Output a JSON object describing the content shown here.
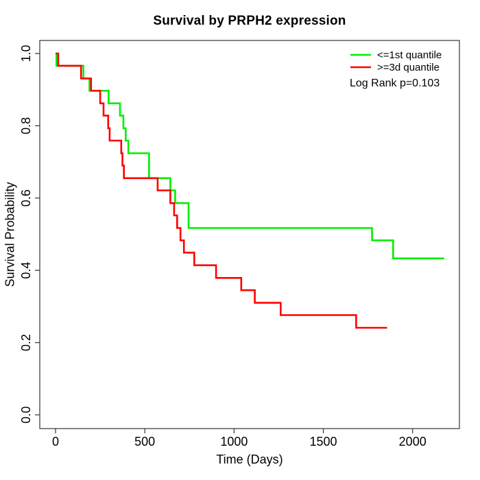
{
  "chart_data": {
    "type": "line",
    "subtype": "kaplan-meier-step",
    "title": "Survival by PRPH2 expression",
    "xlabel": "Time (Days)",
    "ylabel": "Survival Probability",
    "xlim": [
      0,
      2260
    ],
    "ylim": [
      0,
      1
    ],
    "x_ticks": [
      0,
      500,
      1000,
      1500,
      2000
    ],
    "y_ticks": [
      "0.0",
      "0.2",
      "0.4",
      "0.6",
      "0.8",
      "1.0"
    ],
    "grid": false,
    "legend_position": "top-right",
    "annotation": "Log Rank p=0.103",
    "axis_color": "#333333",
    "series": [
      {
        "name": "<=1st quantile",
        "color": "#00ee00",
        "points": [
          [
            0,
            1.0
          ],
          [
            5,
            0.966
          ],
          [
            156,
            0.931
          ],
          [
            190,
            0.897
          ],
          [
            297,
            0.862
          ],
          [
            361,
            0.828
          ],
          [
            380,
            0.793
          ],
          [
            393,
            0.759
          ],
          [
            408,
            0.724
          ],
          [
            524,
            0.655
          ],
          [
            643,
            0.621
          ],
          [
            670,
            0.586
          ],
          [
            745,
            0.517
          ],
          [
            1773,
            0.483
          ],
          [
            1891,
            0.433
          ]
        ],
        "end_time": 2177
      },
      {
        "name": ">=3d quantile",
        "color": "#ff0000",
        "points": [
          [
            0,
            1.0
          ],
          [
            15,
            0.966
          ],
          [
            143,
            0.931
          ],
          [
            199,
            0.897
          ],
          [
            250,
            0.862
          ],
          [
            269,
            0.828
          ],
          [
            295,
            0.793
          ],
          [
            303,
            0.759
          ],
          [
            368,
            0.724
          ],
          [
            375,
            0.69
          ],
          [
            383,
            0.655
          ],
          [
            572,
            0.621
          ],
          [
            643,
            0.586
          ],
          [
            664,
            0.552
          ],
          [
            681,
            0.517
          ],
          [
            700,
            0.483
          ],
          [
            719,
            0.449
          ],
          [
            777,
            0.414
          ],
          [
            899,
            0.379
          ],
          [
            1040,
            0.345
          ],
          [
            1116,
            0.31
          ],
          [
            1261,
            0.276
          ],
          [
            1684,
            0.241
          ]
        ],
        "end_time": 1857
      }
    ]
  }
}
